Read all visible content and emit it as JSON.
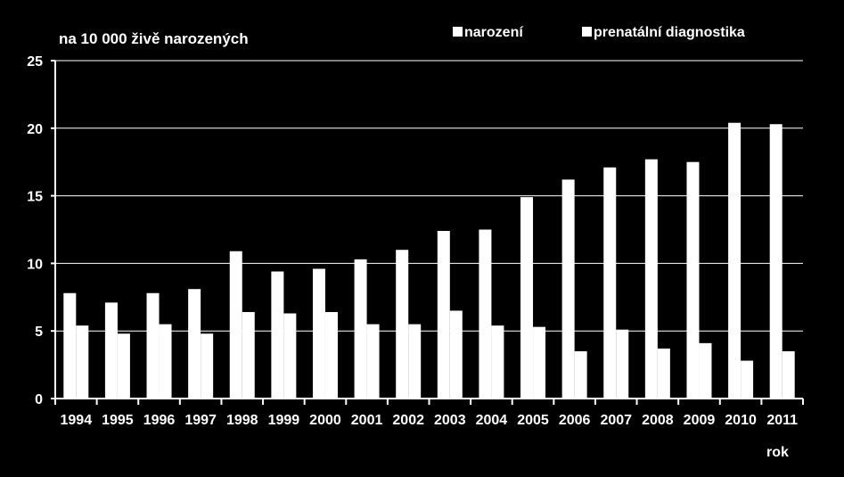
{
  "chart_data": {
    "type": "bar",
    "ylabel": "na 10 000 živě narozených",
    "xlabel": "rok",
    "ylim": [
      0,
      25
    ],
    "yticks": [
      0,
      5,
      10,
      15,
      20,
      25
    ],
    "grid": true,
    "legend_position": "top-right",
    "categories": [
      "1994",
      "1995",
      "1996",
      "1997",
      "1998",
      "1999",
      "2000",
      "2001",
      "2002",
      "2003",
      "2004",
      "2005",
      "2006",
      "2007",
      "2008",
      "2009",
      "2010",
      "2011"
    ],
    "series": [
      {
        "name": "narození",
        "color": "#ffffff",
        "values": [
          7.8,
          7.1,
          7.8,
          8.1,
          10.9,
          9.4,
          9.6,
          10.3,
          11.0,
          12.4,
          12.5,
          14.9,
          16.2,
          17.1,
          17.7,
          17.5,
          20.4,
          20.3
        ]
      },
      {
        "name": "prenatální diagnostika",
        "color": "#ffffff",
        "values": [
          5.4,
          4.8,
          5.5,
          4.8,
          6.4,
          6.3,
          6.4,
          5.5,
          5.5,
          6.5,
          5.4,
          5.3,
          3.5,
          5.1,
          3.7,
          4.1,
          2.8,
          3.5
        ]
      }
    ]
  }
}
